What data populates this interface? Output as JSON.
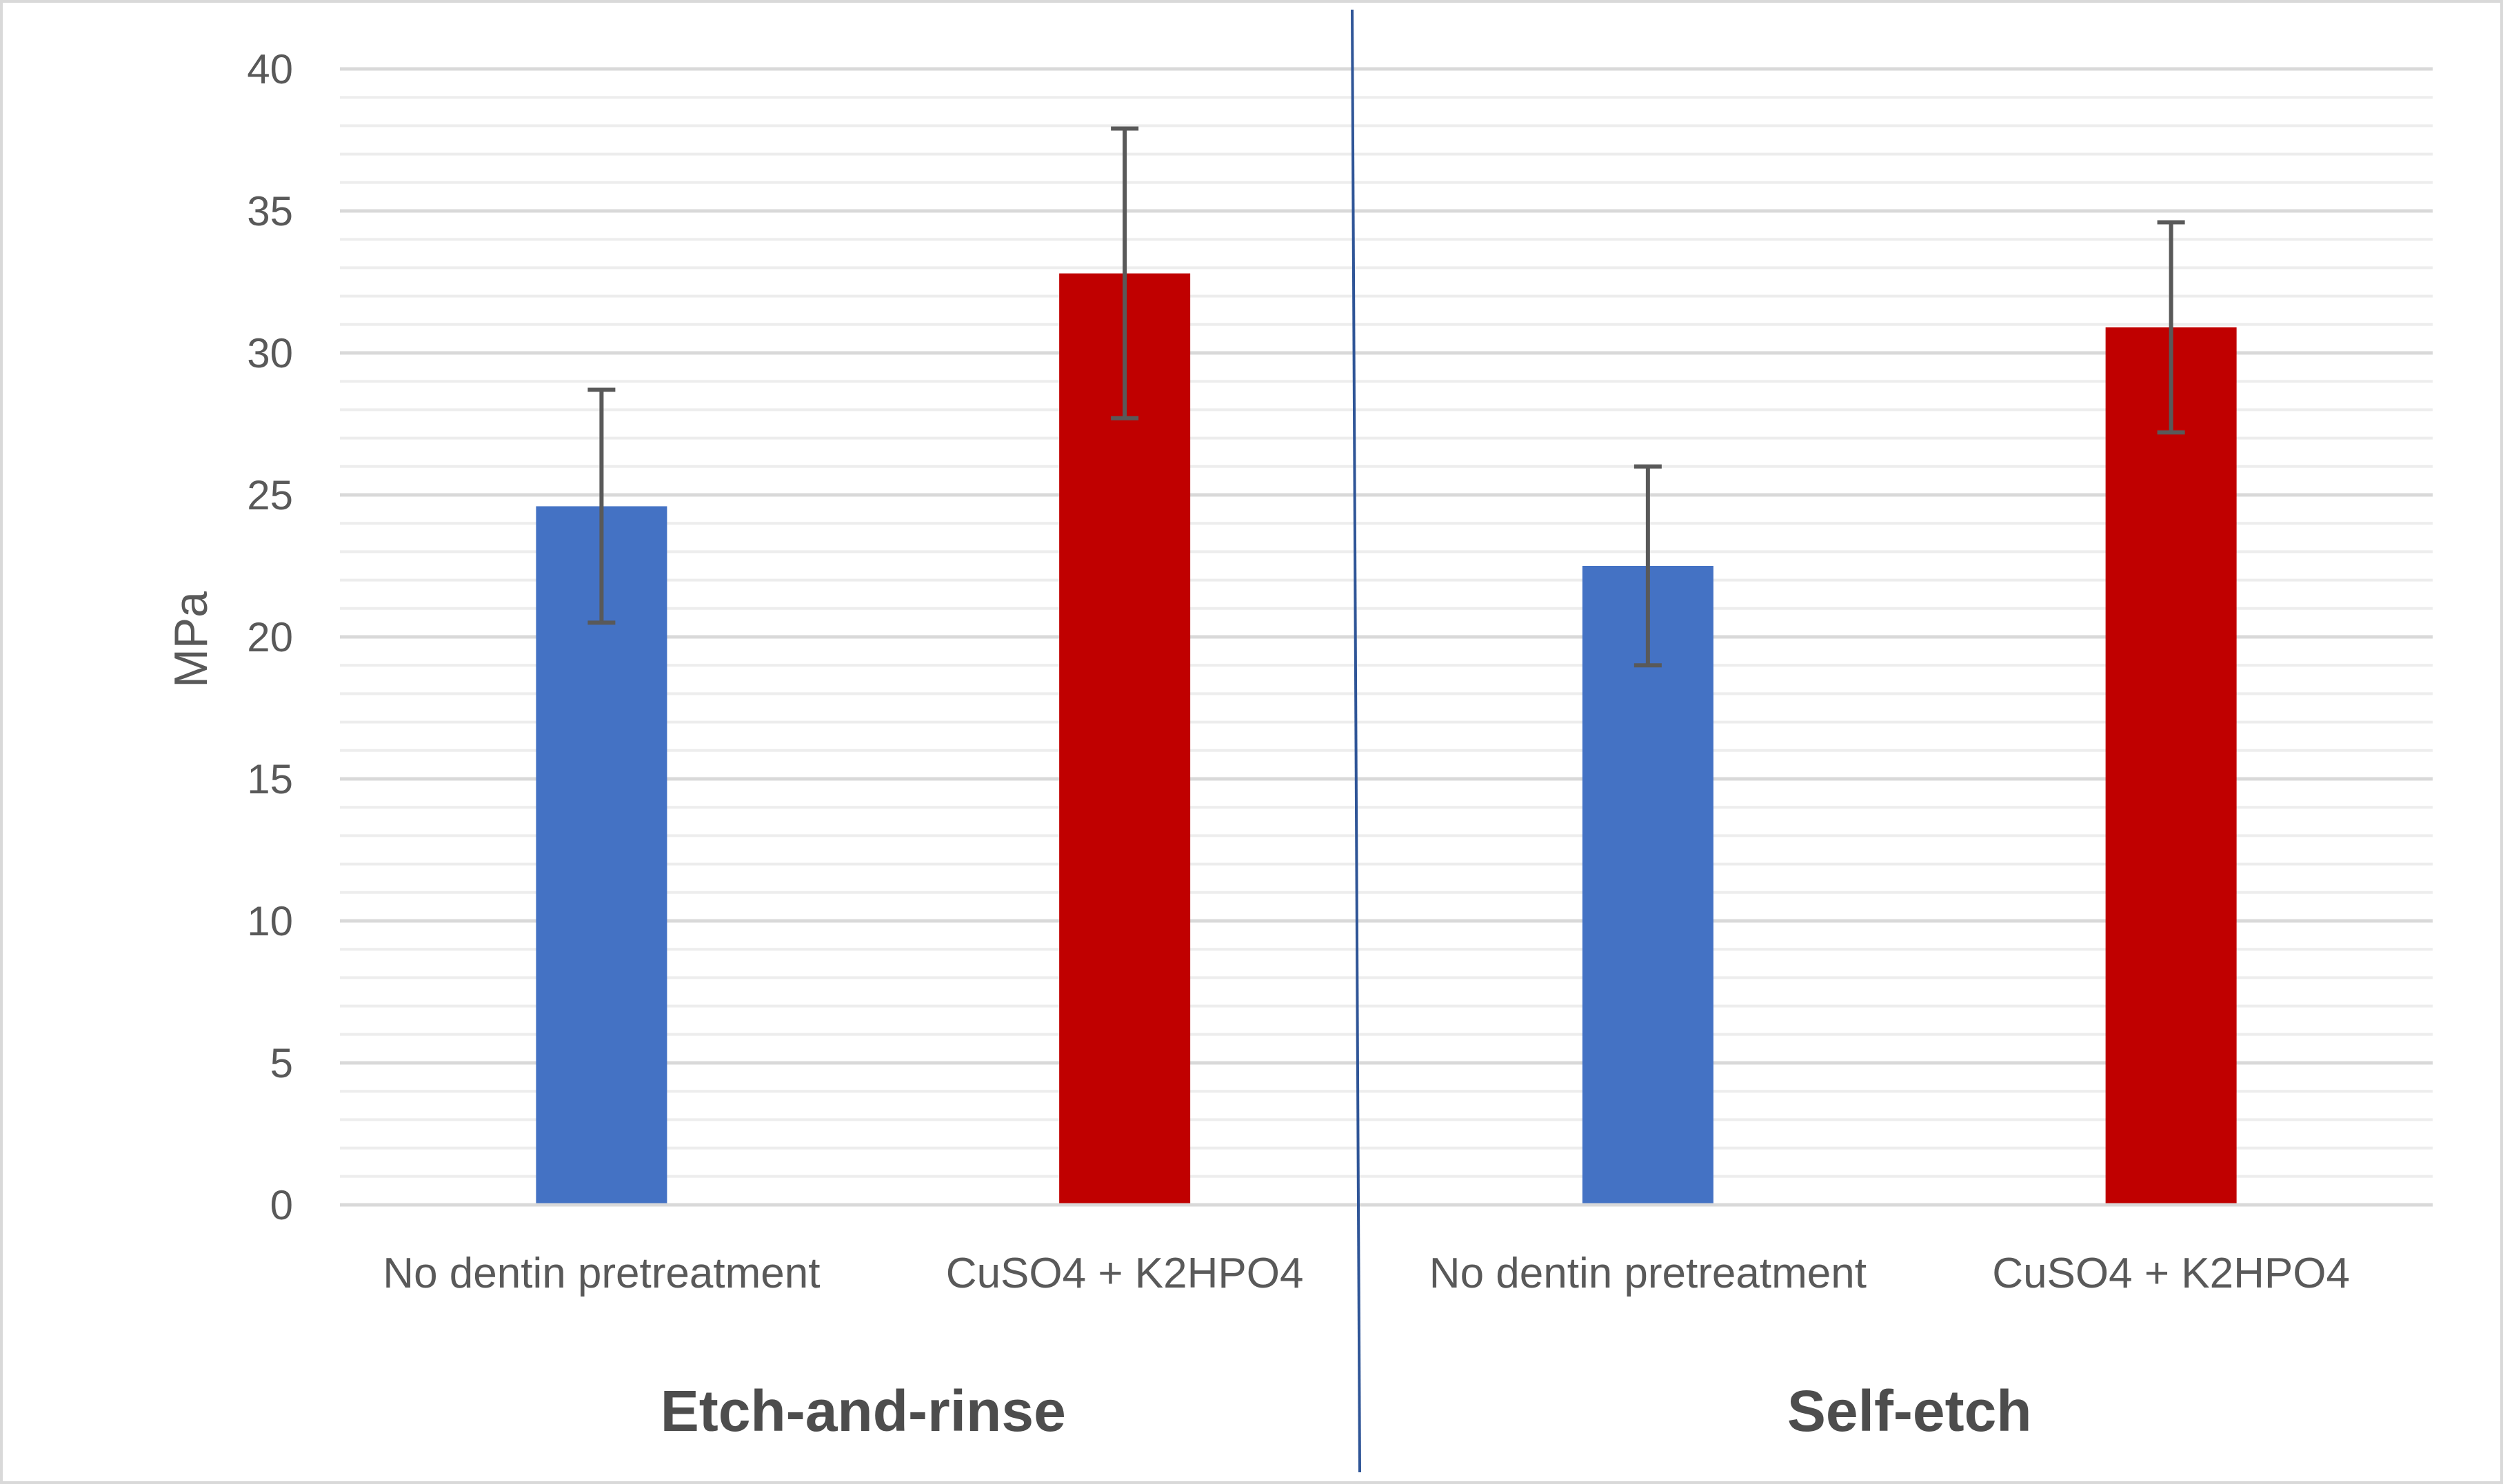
{
  "chart_data": {
    "type": "bar",
    "ylabel": "MPa",
    "ylim": [
      0,
      40
    ],
    "ytick_step": 5,
    "yticks": [
      "0",
      "5",
      "10",
      "15",
      "20",
      "25",
      "30",
      "35",
      "40"
    ],
    "grid": true,
    "legend": "none",
    "groups": [
      {
        "label": "Etch-and-rinse",
        "bars": [
          {
            "category": "No dentin pretreatment",
            "value": 24.6,
            "error": 4.1,
            "color": "#4472C4"
          },
          {
            "category": "CuSO4 + K2HPO4",
            "value": 32.8,
            "error": 5.1,
            "color": "#C00000"
          }
        ]
      },
      {
        "label": "Self-etch",
        "bars": [
          {
            "category": "No dentin pretreatment",
            "value": 22.5,
            "error": 3.5,
            "color": "#4472C4"
          },
          {
            "category": "CuSO4 + K2HPO4",
            "value": 30.9,
            "error": 3.7,
            "color": "#C00000"
          }
        ]
      }
    ],
    "colors": {
      "divider": "#2F5597",
      "gridline_major": "#D9D9D9",
      "gridline_minor": "#EDEDED",
      "error_bar": "#595959",
      "frame": "#D9D9D9"
    }
  }
}
